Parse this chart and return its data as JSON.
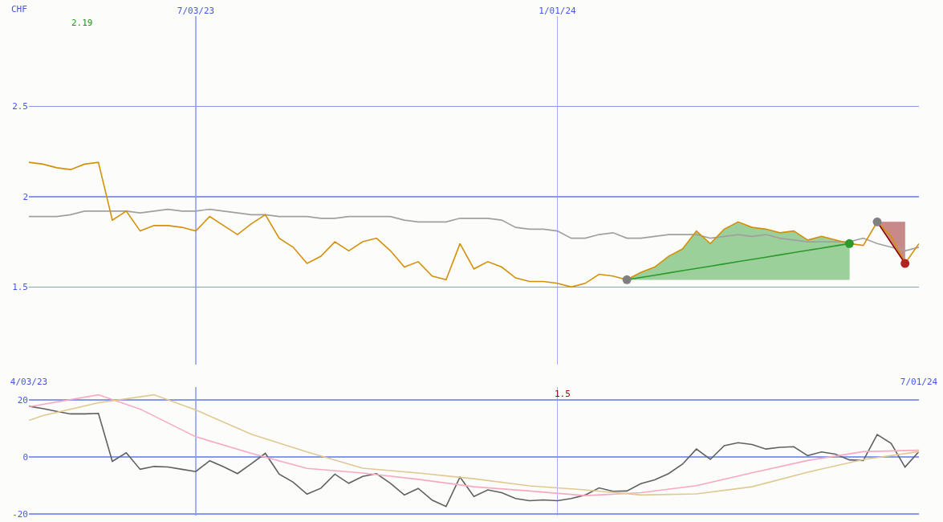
{
  "chart_data": [
    {
      "type": "line",
      "ylabel": "CHF",
      "annotations": [
        "2.19"
      ],
      "grid": true,
      "x": [
        "2023-04-10",
        "2023-04-17",
        "2023-04-24",
        "2023-05-01",
        "2023-05-08",
        "2023-05-15",
        "2023-05-22",
        "2023-05-29",
        "2023-06-05",
        "2023-06-12",
        "2023-06-19",
        "2023-06-26",
        "2023-07-03",
        "2023-07-10",
        "2023-07-17",
        "2023-07-24",
        "2023-07-31",
        "2023-08-07",
        "2023-08-14",
        "2023-08-21",
        "2023-08-28",
        "2023-09-04",
        "2023-09-11",
        "2023-09-18",
        "2023-09-25",
        "2023-10-02",
        "2023-10-09",
        "2023-10-16",
        "2023-10-23",
        "2023-10-30",
        "2023-11-06",
        "2023-11-13",
        "2023-11-20",
        "2023-11-27",
        "2023-12-04",
        "2023-12-11",
        "2023-12-18",
        "2023-12-25",
        "2024-01-01",
        "2024-01-08",
        "2024-01-15",
        "2024-01-22",
        "2024-01-29",
        "2024-02-05",
        "2024-02-12",
        "2024-02-19",
        "2024-02-26",
        "2024-03-04",
        "2024-03-11",
        "2024-03-18",
        "2024-03-25",
        "2024-04-01",
        "2024-04-08",
        "2024-04-15",
        "2024-04-22",
        "2024-04-29",
        "2024-05-06",
        "2024-05-13",
        "2024-05-20",
        "2024-05-27",
        "2024-06-03",
        "2024-06-10",
        "2024-06-17",
        "2024-06-24",
        "2024-07-01"
      ],
      "xlim": [
        "2023-04-10",
        "2024-07-01"
      ],
      "xticks": [
        {
          "value": "2023-07-03",
          "label": "7/03/23"
        },
        {
          "value": "2024-01-01",
          "label": "1/01/24"
        }
      ],
      "ylim": [
        1.07,
        3.0
      ],
      "yticks": [
        1.5,
        2,
        2.5
      ],
      "series": [
        {
          "color": "#a0a0a0",
          "values": [
            1.89,
            1.89,
            1.89,
            1.9,
            1.92,
            1.92,
            1.92,
            1.92,
            1.91,
            1.92,
            1.93,
            1.92,
            1.92,
            1.93,
            1.92,
            1.91,
            1.9,
            1.9,
            1.89,
            1.89,
            1.89,
            1.88,
            1.88,
            1.89,
            1.89,
            1.89,
            1.89,
            1.87,
            1.86,
            1.86,
            1.86,
            1.88,
            1.88,
            1.88,
            1.87,
            1.83,
            1.82,
            1.82,
            1.81,
            1.77,
            1.77,
            1.79,
            1.8,
            1.77,
            1.77,
            1.78,
            1.79,
            1.79,
            1.79,
            1.77,
            1.78,
            1.79,
            1.78,
            1.79,
            1.77,
            1.76,
            1.75,
            1.75,
            1.75,
            1.75,
            1.77,
            1.74,
            1.72,
            1.7,
            1.72
          ]
        },
        {
          "color": "#d4900a",
          "values": [
            2.19,
            2.18,
            2.16,
            2.15,
            2.18,
            2.19,
            1.87,
            1.92,
            1.81,
            1.84,
            1.84,
            1.83,
            1.81,
            1.89,
            1.84,
            1.79,
            1.85,
            1.9,
            1.77,
            1.72,
            1.63,
            1.67,
            1.75,
            1.7,
            1.75,
            1.77,
            1.7,
            1.61,
            1.64,
            1.56,
            1.54,
            1.74,
            1.6,
            1.64,
            1.61,
            1.55,
            1.53,
            1.53,
            1.52,
            1.5,
            1.52,
            1.57,
            1.56,
            1.54,
            1.58,
            1.61,
            1.67,
            1.71,
            1.81,
            1.74,
            1.82,
            1.86,
            1.83,
            1.82,
            1.8,
            1.81,
            1.76,
            1.78,
            1.76,
            1.74,
            1.73,
            1.86,
            1.78,
            1.63,
            1.74
          ]
        },
        {
          "color": "#2a9a2a",
          "x": [
            "2024-02-05",
            "2024-02-12",
            "2024-02-19",
            "2024-02-26",
            "2024-03-04",
            "2024-03-11",
            "2024-03-18",
            "2024-03-25",
            "2024-04-01",
            "2024-04-08",
            "2024-04-15",
            "2024-04-22",
            "2024-04-29",
            "2024-05-06",
            "2024-05-13",
            "2024-05-20",
            "2024-05-27"
          ],
          "values": [
            1.54,
            1.5525,
            1.565,
            1.5775,
            1.59,
            1.6025,
            1.615,
            1.6275,
            1.64,
            1.6525,
            1.665,
            1.6775,
            1.69,
            1.7025,
            1.715,
            1.7275,
            1.74
          ],
          "upper": [
            1.54,
            1.58,
            1.61,
            1.67,
            1.71,
            1.81,
            1.74,
            1.82,
            1.86,
            1.83,
            1.82,
            1.8,
            1.81,
            1.76,
            1.78,
            1.76,
            1.74
          ],
          "lower": [
            1.54,
            1.54,
            1.54,
            1.54,
            1.54,
            1.54,
            1.54,
            1.54,
            1.54,
            1.54,
            1.54,
            1.54,
            1.54,
            1.54,
            1.54,
            1.54,
            1.54
          ]
        },
        {
          "color": "#8b0000",
          "x": [
            "2024-06-10",
            "2024-06-24"
          ],
          "values": [
            1.86,
            1.63
          ],
          "upper": [
            1.86,
            1.86
          ],
          "lower": [
            1.86,
            1.63
          ]
        },
        {
          "type": "scatter",
          "marker": "circle",
          "color": "#808080",
          "x": [
            "2024-02-05",
            "2024-06-10"
          ],
          "values": [
            1.54,
            1.86
          ]
        },
        {
          "type": "scatter",
          "marker": "circle",
          "color": "#2a9a2a",
          "x": [
            "2024-05-27"
          ],
          "values": [
            1.74
          ]
        },
        {
          "type": "scatter",
          "marker": "circle",
          "color": "#b22222",
          "x": [
            "2024-06-24"
          ],
          "values": [
            1.63
          ]
        }
      ]
    },
    {
      "type": "line",
      "annotations": [
        "1.5"
      ],
      "grid": true,
      "x": [
        "2023-04-10",
        "2023-04-17",
        "2023-04-24",
        "2023-05-01",
        "2023-05-08",
        "2023-05-15",
        "2023-05-22",
        "2023-05-29",
        "2023-06-05",
        "2023-06-12",
        "2023-06-19",
        "2023-06-26",
        "2023-07-03",
        "2023-07-10",
        "2023-07-17",
        "2023-07-24",
        "2023-07-31",
        "2023-08-07",
        "2023-08-14",
        "2023-08-21",
        "2023-08-28",
        "2023-09-04",
        "2023-09-11",
        "2023-09-18",
        "2023-09-25",
        "2023-10-02",
        "2023-10-09",
        "2023-10-16",
        "2023-10-23",
        "2023-10-30",
        "2023-11-06",
        "2023-11-13",
        "2023-11-20",
        "2023-11-27",
        "2023-12-04",
        "2023-12-11",
        "2023-12-18",
        "2023-12-25",
        "2024-01-01",
        "2024-01-08",
        "2024-01-15",
        "2024-01-22",
        "2024-01-29",
        "2024-02-05",
        "2024-02-12",
        "2024-02-19",
        "2024-02-26",
        "2024-03-04",
        "2024-03-11",
        "2024-03-18",
        "2024-03-25",
        "2024-04-01",
        "2024-04-08",
        "2024-04-15",
        "2024-04-22",
        "2024-04-29",
        "2024-05-06",
        "2024-05-13",
        "2024-05-20",
        "2024-05-27",
        "2024-06-03",
        "2024-06-10",
        "2024-06-17",
        "2024-06-24",
        "2024-07-01"
      ],
      "xlim": [
        "2023-04-10",
        "2024-07-01"
      ],
      "xticks": [
        {
          "value": "2023-04-10",
          "label": "4/03/23"
        },
        {
          "value": "2023-07-03",
          "label": null
        },
        {
          "value": "2024-01-01",
          "label": null
        },
        {
          "value": "2024-07-01",
          "label": "7/01/24"
        }
      ],
      "ylim": [
        -20.5,
        24.5
      ],
      "yticks": [
        -20,
        0,
        20
      ],
      "series": [
        {
          "color": "#606060",
          "values": [
            17.8,
            17.0,
            16.0,
            15.1,
            15.1,
            15.3,
            -1.5,
            1.5,
            -4.3,
            -3.3,
            -3.5,
            -4.3,
            -5.1,
            -1.3,
            -3.4,
            -5.8,
            -2.3,
            1.3,
            -6.0,
            -8.8,
            -13.0,
            -10.9,
            -6.0,
            -9.2,
            -6.8,
            -5.8,
            -9.2,
            -13.3,
            -11.0,
            -15.1,
            -17.3,
            -7.0,
            -13.8,
            -11.5,
            -12.5,
            -14.5,
            -15.3,
            -15.0,
            -15.3,
            -14.5,
            -13.3,
            -10.8,
            -12.0,
            -11.9,
            -9.3,
            -8.0,
            -5.8,
            -2.5,
            2.8,
            -0.8,
            4.0,
            5.0,
            4.4,
            2.8,
            3.4,
            3.6,
            0.5,
            1.8,
            1.0,
            -1.0,
            -1.2,
            7.9,
            4.8,
            -3.5,
            1.9
          ]
        },
        {
          "color": "#f8a8c0",
          "x": [
            "2023-04-10",
            "2023-05-15",
            "2023-06-05",
            "2023-07-03",
            "2023-07-31",
            "2023-08-28",
            "2023-09-25",
            "2023-10-23",
            "2023-11-20",
            "2023-12-18",
            "2024-01-15",
            "2024-02-12",
            "2024-03-11",
            "2024-04-08",
            "2024-05-06",
            "2024-06-03",
            "2024-07-01"
          ],
          "values": [
            17.6,
            21.8,
            16.8,
            7.1,
            1.3,
            -4.0,
            -5.6,
            -7.8,
            -10.4,
            -11.9,
            -13.5,
            -12.5,
            -10.0,
            -5.5,
            -1.2,
            1.9,
            2.4
          ]
        },
        {
          "color": "#e0c890",
          "x": [
            "2023-04-10",
            "2023-04-17",
            "2023-05-15",
            "2023-06-12",
            "2023-07-03",
            "2023-07-31",
            "2023-08-28",
            "2023-09-25",
            "2023-10-23",
            "2023-11-20",
            "2023-12-18",
            "2024-01-15",
            "2024-02-12",
            "2024-03-11",
            "2024-04-08",
            "2024-05-06",
            "2024-06-03",
            "2024-07-01"
          ],
          "values": [
            12.8,
            14.5,
            19.0,
            21.8,
            16.5,
            8.0,
            1.8,
            -3.9,
            -5.6,
            -7.6,
            -10.1,
            -11.5,
            -13.3,
            -12.9,
            -10.4,
            -5.3,
            -0.9,
            1.9
          ]
        }
      ]
    }
  ]
}
